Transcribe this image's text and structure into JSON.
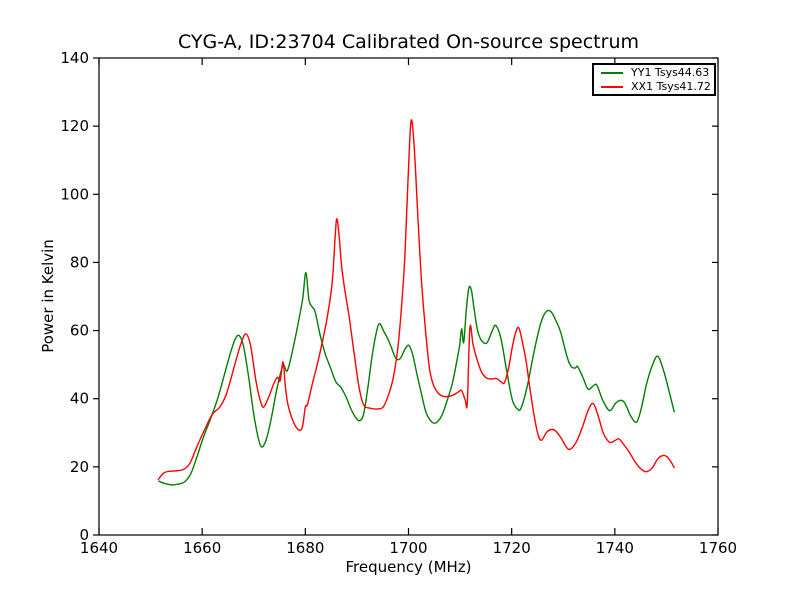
{
  "figure": {
    "title": "CYG-A, ID:23704 Calibrated On-source spectrum",
    "xlabel": "Frequency (MHz)",
    "ylabel": "Power in Kelvin"
  },
  "legend": {
    "position": "upper right",
    "items": [
      {
        "label": "YY1 Tsys44.63",
        "color": "#007f00"
      },
      {
        "label": "XX1 Tsys41.72",
        "color": "#ff0000"
      }
    ]
  },
  "chart_data": {
    "type": "line",
    "title": "CYG-A, ID:23704 Calibrated On-source spectrum",
    "xlabel": "Frequency (MHz)",
    "ylabel": "Power in Kelvin",
    "xlim": [
      1640,
      1760
    ],
    "ylim": [
      0,
      140
    ],
    "xticks": [
      1640,
      1660,
      1680,
      1700,
      1720,
      1740,
      1760
    ],
    "yticks": [
      0,
      20,
      40,
      60,
      80,
      100,
      120,
      140
    ],
    "grid": false,
    "frame_color": "#000000",
    "legend_position": "upper right",
    "series": [
      {
        "name": "YY1 Tsys44.63",
        "color": "#007f00",
        "points": [
          [
            1651.6,
            15.8
          ],
          [
            1652.6,
            15.2
          ],
          [
            1654.2,
            14.7
          ],
          [
            1655.5,
            15.0
          ],
          [
            1656.6,
            15.6
          ],
          [
            1657.8,
            18.0
          ],
          [
            1659.0,
            23.0
          ],
          [
            1660.2,
            28.5
          ],
          [
            1661.6,
            34.0
          ],
          [
            1663.0,
            40.0
          ],
          [
            1664.3,
            47.0
          ],
          [
            1665.4,
            53.0
          ],
          [
            1666.4,
            57.5
          ],
          [
            1667.2,
            58.5
          ],
          [
            1668.0,
            55.5
          ],
          [
            1669.0,
            46.5
          ],
          [
            1670.1,
            34.5
          ],
          [
            1671.3,
            26.3
          ],
          [
            1672.3,
            27.5
          ],
          [
            1673.3,
            33.5
          ],
          [
            1674.3,
            41.5
          ],
          [
            1675.2,
            47.5
          ],
          [
            1675.8,
            49.8
          ],
          [
            1676.5,
            48.2
          ],
          [
            1677.5,
            54.0
          ],
          [
            1678.6,
            62.0
          ],
          [
            1679.5,
            69.5
          ],
          [
            1680.1,
            77.0
          ],
          [
            1680.7,
            69.0
          ],
          [
            1681.3,
            67.0
          ],
          [
            1681.9,
            65.5
          ],
          [
            1682.9,
            58.5
          ],
          [
            1683.9,
            53.0
          ],
          [
            1684.9,
            49.0
          ],
          [
            1685.9,
            45.0
          ],
          [
            1686.9,
            43.3
          ],
          [
            1687.9,
            40.5
          ],
          [
            1688.9,
            36.8
          ],
          [
            1689.9,
            34.2
          ],
          [
            1690.6,
            33.6
          ],
          [
            1691.3,
            35.5
          ],
          [
            1692.1,
            43.0
          ],
          [
            1693.1,
            54.0
          ],
          [
            1694.2,
            61.8
          ],
          [
            1695.2,
            59.8
          ],
          [
            1696.3,
            56.5
          ],
          [
            1697.5,
            52.0
          ],
          [
            1698.4,
            51.8
          ],
          [
            1699.4,
            54.8
          ],
          [
            1700.1,
            55.6
          ],
          [
            1700.8,
            53.0
          ],
          [
            1701.6,
            47.5
          ],
          [
            1702.5,
            41.5
          ],
          [
            1703.4,
            36.0
          ],
          [
            1704.5,
            33.2
          ],
          [
            1705.4,
            33.0
          ],
          [
            1706.5,
            35.2
          ],
          [
            1707.5,
            39.5
          ],
          [
            1708.5,
            44.5
          ],
          [
            1709.3,
            50.5
          ],
          [
            1709.9,
            55.5
          ],
          [
            1710.3,
            60.5
          ],
          [
            1710.7,
            56.5
          ],
          [
            1711.2,
            66.0
          ],
          [
            1711.7,
            72.5
          ],
          [
            1712.2,
            71.8
          ],
          [
            1712.7,
            66.5
          ],
          [
            1713.4,
            60.0
          ],
          [
            1714.2,
            57.0
          ],
          [
            1715.2,
            56.4
          ],
          [
            1716.2,
            59.8
          ],
          [
            1716.9,
            61.5
          ],
          [
            1717.9,
            57.8
          ],
          [
            1719.0,
            48.5
          ],
          [
            1720.1,
            39.8
          ],
          [
            1721.1,
            37.0
          ],
          [
            1721.8,
            37.2
          ],
          [
            1723.0,
            43.5
          ],
          [
            1724.3,
            53.5
          ],
          [
            1725.6,
            62.0
          ],
          [
            1726.7,
            65.6
          ],
          [
            1727.7,
            65.4
          ],
          [
            1728.7,
            62.5
          ],
          [
            1729.5,
            59.5
          ],
          [
            1730.7,
            52.5
          ],
          [
            1731.5,
            49.5
          ],
          [
            1732.3,
            49.0
          ],
          [
            1732.8,
            49.4
          ],
          [
            1733.8,
            46.3
          ],
          [
            1734.8,
            42.8
          ],
          [
            1735.7,
            43.6
          ],
          [
            1736.5,
            44.0
          ],
          [
            1737.7,
            39.4
          ],
          [
            1739.0,
            36.5
          ],
          [
            1740.1,
            38.6
          ],
          [
            1741.0,
            39.5
          ],
          [
            1741.9,
            38.8
          ],
          [
            1743.1,
            34.9
          ],
          [
            1744.2,
            33.1
          ],
          [
            1745.1,
            37.0
          ],
          [
            1746.1,
            44.0
          ],
          [
            1747.2,
            49.5
          ],
          [
            1748.3,
            52.5
          ],
          [
            1749.4,
            48.5
          ],
          [
            1750.3,
            43.5
          ],
          [
            1751.5,
            36.2
          ]
        ]
      },
      {
        "name": "XX1 Tsys41.72",
        "color": "#ff0000",
        "points": [
          [
            1651.5,
            16.3
          ],
          [
            1652.4,
            18.0
          ],
          [
            1653.2,
            18.6
          ],
          [
            1654.6,
            18.8
          ],
          [
            1656.3,
            19.2
          ],
          [
            1657.6,
            21.0
          ],
          [
            1659.0,
            26.0
          ],
          [
            1660.5,
            31.0
          ],
          [
            1662.0,
            35.5
          ],
          [
            1663.4,
            37.5
          ],
          [
            1664.6,
            41.0
          ],
          [
            1665.6,
            46.0
          ],
          [
            1666.6,
            51.5
          ],
          [
            1667.6,
            56.5
          ],
          [
            1668.5,
            59.0
          ],
          [
            1669.4,
            55.5
          ],
          [
            1670.4,
            45.5
          ],
          [
            1671.2,
            39.8
          ],
          [
            1671.9,
            37.5
          ],
          [
            1672.9,
            40.5
          ],
          [
            1673.9,
            44.5
          ],
          [
            1674.6,
            46.3
          ],
          [
            1675.1,
            45.2
          ],
          [
            1675.7,
            50.8
          ],
          [
            1676.1,
            44.0
          ],
          [
            1676.6,
            38.5
          ],
          [
            1677.6,
            33.5
          ],
          [
            1678.6,
            31.0
          ],
          [
            1679.4,
            31.5
          ],
          [
            1680.0,
            37.6
          ],
          [
            1680.4,
            38.2
          ],
          [
            1681.3,
            44.0
          ],
          [
            1682.3,
            50.0
          ],
          [
            1683.2,
            56.0
          ],
          [
            1684.2,
            63.5
          ],
          [
            1685.2,
            74.0
          ],
          [
            1685.8,
            88.0
          ],
          [
            1686.1,
            92.8
          ],
          [
            1686.5,
            88.5
          ],
          [
            1687.1,
            78.0
          ],
          [
            1687.8,
            70.5
          ],
          [
            1688.5,
            64.0
          ],
          [
            1689.4,
            54.0
          ],
          [
            1690.4,
            43.5
          ],
          [
            1691.3,
            38.2
          ],
          [
            1692.6,
            37.2
          ],
          [
            1694.1,
            37.0
          ],
          [
            1695.1,
            37.6
          ],
          [
            1696.1,
            41.0
          ],
          [
            1697.0,
            45.8
          ],
          [
            1697.9,
            54.5
          ],
          [
            1698.6,
            66.0
          ],
          [
            1699.3,
            82.0
          ],
          [
            1699.9,
            104.0
          ],
          [
            1700.5,
            121.5
          ],
          [
            1701.1,
            114.0
          ],
          [
            1701.8,
            94.0
          ],
          [
            1702.5,
            75.0
          ],
          [
            1703.3,
            60.0
          ],
          [
            1704.1,
            48.5
          ],
          [
            1704.9,
            43.8
          ],
          [
            1705.9,
            41.4
          ],
          [
            1707.1,
            40.6
          ],
          [
            1708.4,
            40.9
          ],
          [
            1709.6,
            41.9
          ],
          [
            1710.3,
            42.4
          ],
          [
            1711.0,
            39.6
          ],
          [
            1711.4,
            38.8
          ],
          [
            1711.9,
            60.8
          ],
          [
            1712.5,
            56.0
          ],
          [
            1713.1,
            52.5
          ],
          [
            1714.1,
            48.0
          ],
          [
            1715.1,
            46.1
          ],
          [
            1716.1,
            45.8
          ],
          [
            1717.1,
            45.9
          ],
          [
            1718.0,
            44.9
          ],
          [
            1718.6,
            44.7
          ],
          [
            1719.4,
            49.0
          ],
          [
            1720.1,
            55.0
          ],
          [
            1720.8,
            59.5
          ],
          [
            1721.4,
            60.8
          ],
          [
            1722.1,
            56.5
          ],
          [
            1722.8,
            51.0
          ],
          [
            1723.5,
            43.5
          ],
          [
            1724.3,
            35.5
          ],
          [
            1725.1,
            29.5
          ],
          [
            1725.8,
            27.8
          ],
          [
            1726.8,
            30.2
          ],
          [
            1727.8,
            31.0
          ],
          [
            1728.6,
            30.4
          ],
          [
            1729.6,
            28.4
          ],
          [
            1730.6,
            25.8
          ],
          [
            1731.4,
            25.2
          ],
          [
            1732.6,
            27.5
          ],
          [
            1733.8,
            32.0
          ],
          [
            1734.8,
            36.5
          ],
          [
            1735.8,
            38.6
          ],
          [
            1736.8,
            34.8
          ],
          [
            1737.8,
            29.8
          ],
          [
            1739.0,
            27.2
          ],
          [
            1740.0,
            27.7
          ],
          [
            1740.8,
            28.2
          ],
          [
            1741.8,
            26.4
          ],
          [
            1742.8,
            24.3
          ],
          [
            1744.0,
            21.3
          ],
          [
            1745.2,
            19.2
          ],
          [
            1746.2,
            18.6
          ],
          [
            1747.2,
            19.6
          ],
          [
            1748.3,
            22.3
          ],
          [
            1749.3,
            23.3
          ],
          [
            1750.1,
            23.0
          ],
          [
            1750.9,
            21.4
          ],
          [
            1751.5,
            19.8
          ]
        ]
      }
    ]
  }
}
